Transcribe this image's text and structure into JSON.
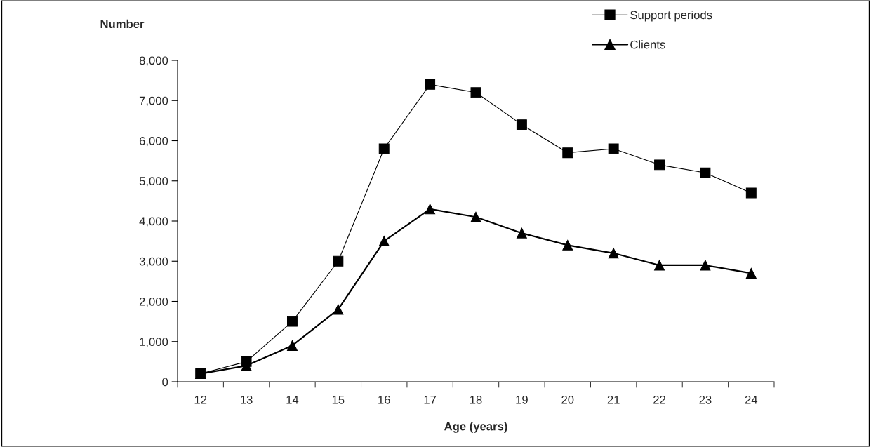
{
  "chart_data": {
    "type": "line",
    "ylabel": "Number",
    "xlabel": "Age (years)",
    "categories": [
      "12",
      "13",
      "14",
      "15",
      "16",
      "17",
      "18",
      "19",
      "20",
      "21",
      "22",
      "23",
      "24"
    ],
    "series": [
      {
        "name": "Support periods",
        "color": "#000000",
        "marker": "square",
        "line_style": "solid",
        "values": [
          200,
          500,
          1500,
          3000,
          5800,
          7400,
          7200,
          6400,
          5700,
          5800,
          5400,
          5200,
          4700
        ]
      },
      {
        "name": "Clients",
        "color": "#000000",
        "marker": "triangle",
        "line_style": "solid",
        "values": [
          200,
          400,
          900,
          1800,
          3500,
          4300,
          4100,
          3700,
          3400,
          3200,
          2900,
          2900,
          2700
        ]
      }
    ],
    "ylim": [
      0,
      8000
    ],
    "yticks": [
      {
        "value": 0,
        "label": "0"
      },
      {
        "value": 1000,
        "label": "1,000"
      },
      {
        "value": 2000,
        "label": "2,000"
      },
      {
        "value": 3000,
        "label": "3,000"
      },
      {
        "value": 4000,
        "label": "4,000"
      },
      {
        "value": 5000,
        "label": "5,000"
      },
      {
        "value": 6000,
        "label": "6,000"
      },
      {
        "value": 7000,
        "label": "7,000"
      },
      {
        "value": 8000,
        "label": "8,000"
      }
    ],
    "grid": false,
    "legend": "top right"
  }
}
